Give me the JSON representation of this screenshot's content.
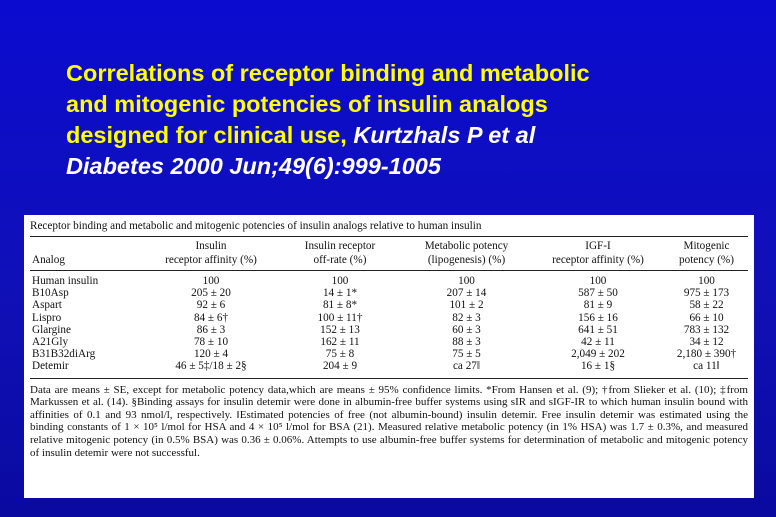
{
  "slide": {
    "title_lines": [
      "Correlations of receptor binding and metabolic",
      "and mitogenic potencies of insulin analogs",
      "designed for clinical use, "
    ],
    "citation_line1": "Kurtzhals P et al",
    "citation_line2": "Diabetes 2000 Jun;49(6):999-1005"
  },
  "table": {
    "caption": "Receptor binding and metabolic and mitogenic potencies of insulin analogs relative to human insulin",
    "headers": [
      [
        "Analog"
      ],
      [
        "Insulin",
        "receptor affinity (%)"
      ],
      [
        "Insulin receptor",
        "off-rate (%)"
      ],
      [
        "Metabolic potency",
        "(lipogenesis) (%)"
      ],
      [
        "IGF-I",
        "receptor affinity (%)"
      ],
      [
        "Mitogenic",
        "potency (%)"
      ]
    ],
    "rows": [
      [
        "Human insulin",
        "100",
        "100",
        "100",
        "100",
        "100"
      ],
      [
        "B10Asp",
        "205 ± 20",
        "14 ± 1*",
        "207 ± 14",
        "587 ± 50",
        "975 ± 173"
      ],
      [
        "Aspart",
        "92 ± 6",
        "81 ± 8*",
        "101 ± 2",
        "81 ± 9",
        "58 ± 22"
      ],
      [
        "Lispro",
        "84 ± 6†",
        "100 ± 11†",
        "82 ± 3",
        "156 ± 16",
        "66 ± 10"
      ],
      [
        "Glargine",
        "86 ± 3",
        "152 ± 13",
        "60 ± 3",
        "641 ± 51",
        "783 ± 132"
      ],
      [
        "A21Gly",
        "78 ± 10",
        "162 ± 11",
        "88 ± 3",
        "42 ± 11",
        "34 ± 12"
      ],
      [
        "B31B32diArg",
        "120 ± 4",
        "75 ± 8",
        "75 ± 5",
        "2,049 ± 202",
        "2,180 ± 390†"
      ],
      [
        "Detemir",
        "46 ± 5‡/18 ± 2§",
        "204 ± 9",
        "ca 27‖",
        "16 ± 1§",
        "ca 11‖"
      ]
    ],
    "footnote": "Data are means ± SE, except for metabolic potency data,which are means ± 95% confidence limits. *From Hansen et al. (9); †from Slieker et al. (10); ‡from Markussen et al. (14). §Binding assays for insulin detemir were done in albumin-free buffer systems using sIR and sIGF-IR to which human insulin bound with affinities of 0.1 and 93 nmol/l, respectively. ‖Estimated potencies of free (not albumin-bound) insulin detemir. Free insulin detemir was estimated using the binding constants of 1 × 10⁵ l/mol for HSA and 4 × 10⁵ l/mol for BSA (21). Measured relative metabolic potency (in 1% HSA) was 1.7 ± 0.3%, and measured relative mitogenic potency (in 0.5% BSA) was 0.36 ± 0.06%. Attempts to use albumin-free buffer systems for determination of metabolic and mitogenic potency of insulin detemir were not successful."
  }
}
